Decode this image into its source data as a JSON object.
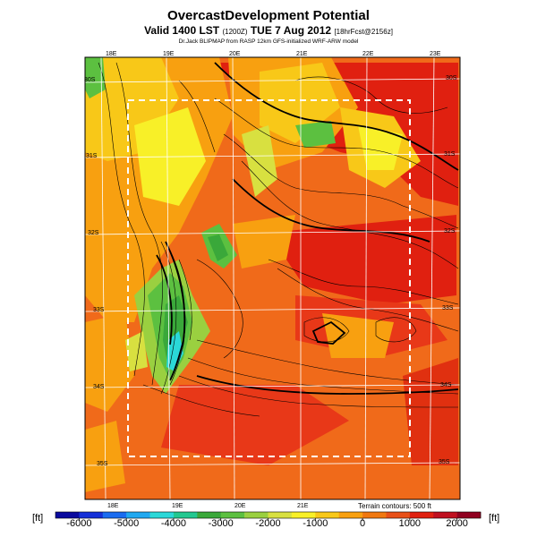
{
  "title": "OvercastDevelopment Potential",
  "subtitle_main": "Valid 1400 LST",
  "subtitle_utc": "(1200Z)",
  "subtitle_date": "TUE 7 Aug 2012",
  "subtitle_fcst": "[18hrFcst@2156z]",
  "credit": "Dr.Jack BLIPMAP from RASP 12km GFS-initialized WRF-ARW model",
  "lon_labels_top": [
    "18E",
    "19E",
    "20E",
    "21E",
    "22E",
    "23E"
  ],
  "lon_labels_bottom": [
    "18E",
    "19E",
    "20E",
    "21E"
  ],
  "lat_labels_left": [
    "30S",
    "31S",
    "32S",
    "33S",
    "34S",
    "35S"
  ],
  "lat_labels_right": [
    "30S",
    "31S",
    "32S",
    "33S",
    "34S",
    "35S"
  ],
  "terrain_note": "Terrain contours: 500 ft",
  "colorbar": {
    "unit_left": "[ft]",
    "unit_right": "[ft]",
    "ticks": [
      "-6000",
      "-5000",
      "-4000",
      "-3000",
      "-2000",
      "-1000",
      "0",
      "1000",
      "2000"
    ],
    "colors": [
      "#0a0a9e",
      "#1530d8",
      "#1a6cf0",
      "#20a8f0",
      "#2ad8d8",
      "#22c890",
      "#3aa83a",
      "#5cc040",
      "#9ad040",
      "#d8e040",
      "#f8f028",
      "#f8c818",
      "#f8a010",
      "#f07810",
      "#e85018",
      "#e02010",
      "#c01020",
      "#900020"
    ]
  }
}
